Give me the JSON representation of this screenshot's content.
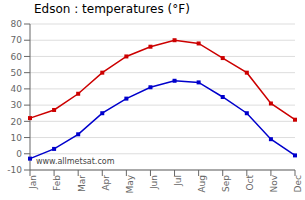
{
  "chart_data": {
    "type": "line",
    "title": "Edson : temperatures (°F)",
    "categories": [
      "Jan",
      "Feb",
      "Mar",
      "Apr",
      "May",
      "Jun",
      "Jul",
      "Aug",
      "Sep",
      "Oct",
      "Nov",
      "Dec"
    ],
    "series": [
      {
        "color": "#cc0000",
        "values": [
          22,
          27,
          37,
          50,
          60,
          66,
          70,
          68,
          59,
          50,
          31,
          21
        ],
        "marker": "square"
      },
      {
        "color": "#0000cc",
        "values": [
          -3,
          3,
          12,
          25,
          34,
          41,
          45,
          44,
          35,
          25,
          9,
          -1
        ],
        "marker": "square"
      }
    ],
    "ylim": [
      -10,
      80
    ],
    "yticks": [
      -10,
      0,
      10,
      20,
      30,
      40,
      50,
      60,
      70,
      80
    ],
    "grid": true,
    "annotations": [
      "www.allmetsat.com"
    ]
  }
}
